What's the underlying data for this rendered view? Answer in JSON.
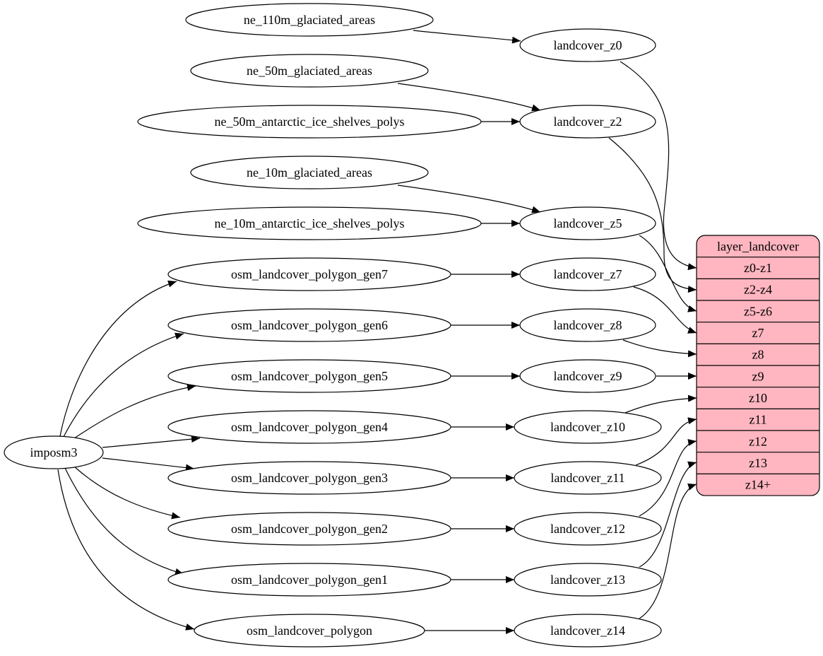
{
  "nodes": [
    "ne_110m_glaciated_areas",
    "ne_50m_glaciated_areas",
    "ne_50m_antarctic_ice_shelves_polys",
    "ne_10m_glaciated_areas",
    "ne_10m_antarctic_ice_shelves_polys",
    "osm_landcover_polygon_gen7",
    "osm_landcover_polygon_gen6",
    "osm_landcover_polygon_gen5",
    "osm_landcover_polygon_gen4",
    "osm_landcover_polygon_gen3",
    "osm_landcover_polygon_gen2",
    "osm_landcover_polygon_gen1",
    "osm_landcover_polygon",
    "imposm3",
    "landcover_z0",
    "landcover_z2",
    "landcover_z5",
    "landcover_z7",
    "landcover_z8",
    "landcover_z9",
    "landcover_z10",
    "landcover_z11",
    "landcover_z12",
    "landcover_z13",
    "landcover_z14"
  ],
  "record": {
    "title": "layer_landcover",
    "fields": [
      "z0-z1",
      "z2-z4",
      "z5-z6",
      "z7",
      "z8",
      "z9",
      "z10",
      "z11",
      "z12",
      "z13",
      "z14+"
    ]
  }
}
